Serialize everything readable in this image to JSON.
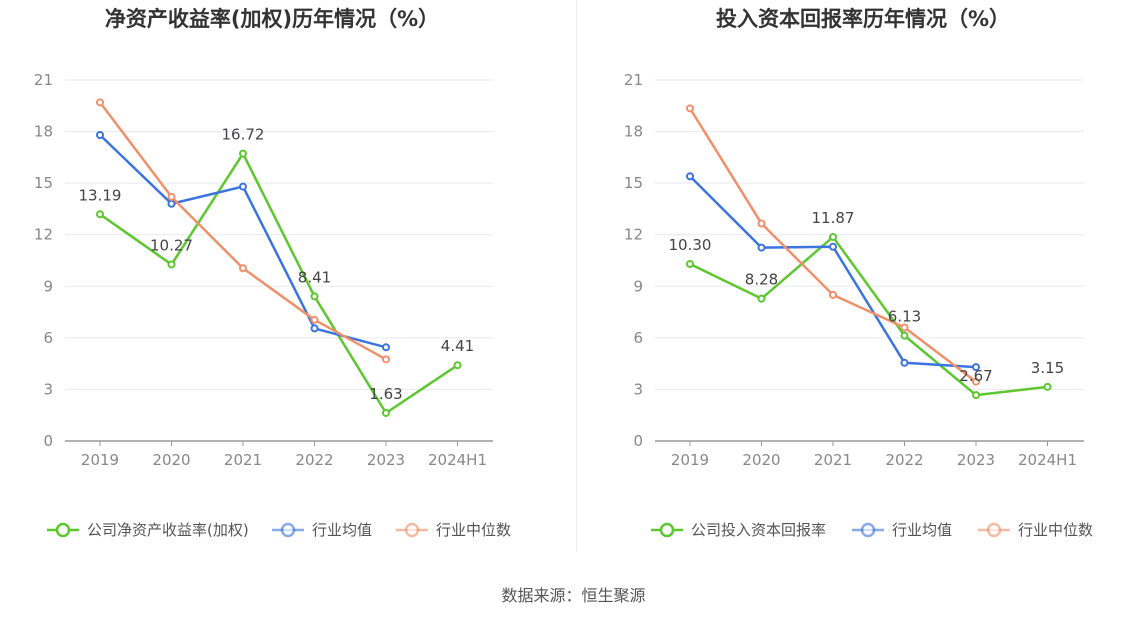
{
  "colors": {
    "company": "#5cc72f",
    "avg": "#3b74e0",
    "median": "#f0906a"
  },
  "source_label": "数据来源：恒生聚源",
  "chart_data": [
    {
      "type": "line",
      "title": "净资产收益率(加权)历年情况（%）",
      "categories": [
        "2019",
        "2020",
        "2021",
        "2022",
        "2023",
        "2024H1"
      ],
      "yticks": [
        "0",
        "3",
        "6",
        "9",
        "12",
        "15",
        "18",
        "21"
      ],
      "ylim": [
        0,
        21
      ],
      "series": [
        {
          "name": "公司净资产收益率(加权)",
          "values": [
            13.19,
            10.27,
            16.72,
            8.41,
            1.63,
            4.41
          ],
          "labels": [
            "13.19",
            "10.27",
            "16.72",
            "8.41",
            "1.63",
            "4.41"
          ]
        },
        {
          "name": "行业均值",
          "values": [
            17.8,
            13.8,
            14.8,
            6.55,
            5.45,
            null
          ]
        },
        {
          "name": "行业中位数",
          "values": [
            19.7,
            14.2,
            10.05,
            7.05,
            4.75,
            null
          ]
        }
      ]
    },
    {
      "type": "line",
      "title": "投入资本回报率历年情况（%）",
      "categories": [
        "2019",
        "2020",
        "2021",
        "2022",
        "2023",
        "2024H1"
      ],
      "yticks": [
        "0",
        "3",
        "6",
        "9",
        "12",
        "15",
        "18",
        "21"
      ],
      "ylim": [
        0,
        21
      ],
      "series": [
        {
          "name": "公司投入资本回报率",
          "values": [
            10.3,
            8.28,
            11.87,
            6.13,
            2.67,
            3.15
          ],
          "labels": [
            "10.30",
            "8.28",
            "11.87",
            "6.13",
            "2.67",
            "3.15"
          ]
        },
        {
          "name": "行业均值",
          "values": [
            15.4,
            11.25,
            11.3,
            4.55,
            4.3,
            null
          ]
        },
        {
          "name": "行业中位数",
          "values": [
            19.35,
            12.65,
            8.5,
            6.6,
            3.45,
            null
          ]
        }
      ]
    }
  ]
}
